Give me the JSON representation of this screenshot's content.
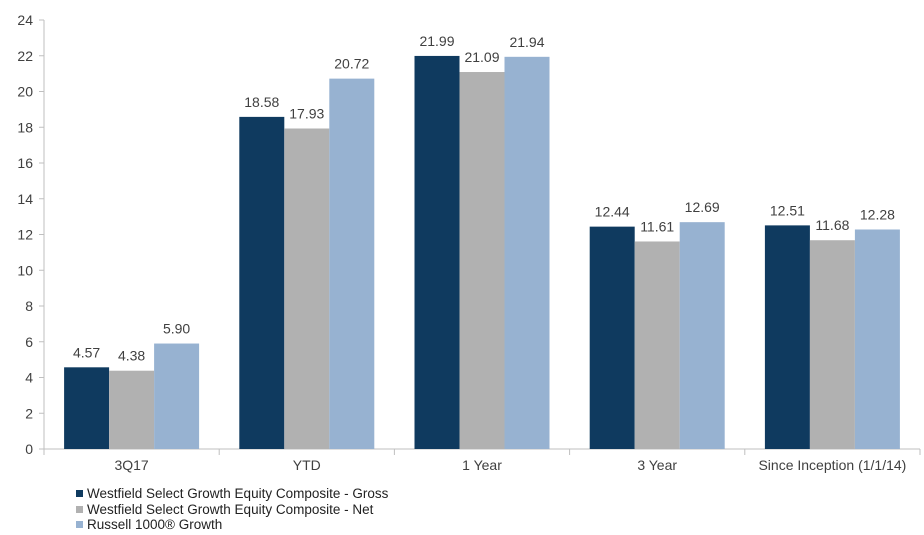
{
  "chart_data": {
    "type": "bar",
    "title": "",
    "xlabel": "",
    "ylabel": "",
    "ylim": [
      0,
      24
    ],
    "yticks": [
      0,
      2,
      4,
      6,
      8,
      10,
      12,
      14,
      16,
      18,
      20,
      22,
      24
    ],
    "categories": [
      "3Q17",
      "YTD",
      "1 Year",
      "3 Year",
      "Since Inception (1/1/14)"
    ],
    "series": [
      {
        "name": "Westfield Select Growth Equity Composite - Gross",
        "color": "#0f3a5f",
        "values": [
          4.57,
          18.58,
          21.99,
          12.44,
          12.51
        ],
        "labels": [
          "4.57",
          "18.58",
          "21.99",
          "12.44",
          "12.51"
        ]
      },
      {
        "name": "Westfield Select Growth Equity Composite - Net",
        "color": "#b1b1b1",
        "values": [
          4.38,
          17.93,
          21.09,
          11.61,
          11.68
        ],
        "labels": [
          "4.38",
          "17.93",
          "21.09",
          "11.61",
          "11.68"
        ]
      },
      {
        "name": "Russell 1000® Growth",
        "color": "#97b2d1",
        "values": [
          5.9,
          20.72,
          21.94,
          12.69,
          12.28
        ],
        "labels": [
          "5.90",
          "20.72",
          "21.94",
          "12.69",
          "12.28"
        ]
      }
    ],
    "grid": false,
    "legend_position": "bottom-left"
  }
}
